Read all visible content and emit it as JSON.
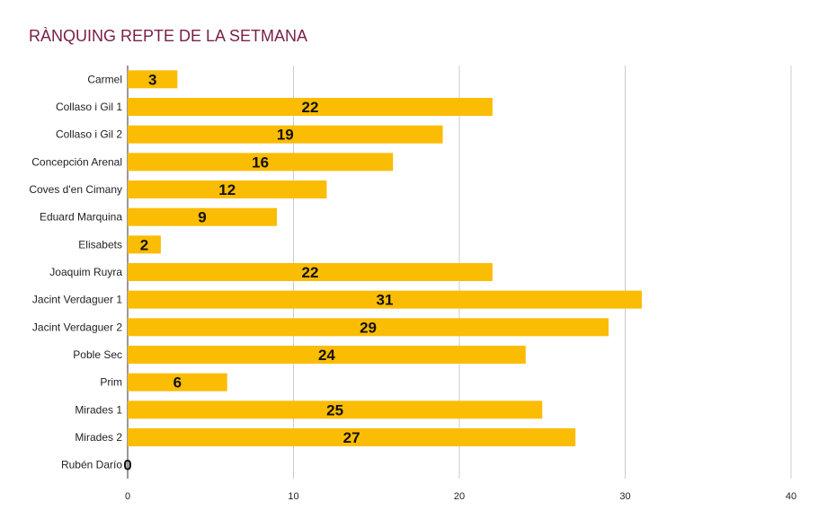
{
  "chart_data": {
    "type": "bar",
    "orientation": "horizontal",
    "title": "RÀNQUING REPTE DE LA SETMANA",
    "categories": [
      "Carmel",
      "Collaso i Gil 1",
      "Collaso i Gil 2",
      "Concepción Arenal",
      "Coves d'en Cimany",
      "Eduard Marquina",
      "Elisabets",
      "Joaquim Ruyra",
      "Jacint Verdaguer 1",
      "Jacint Verdaguer 2",
      "Poble Sec",
      "Prim",
      "Mirades 1",
      "Mirades 2",
      "Rubén Darío"
    ],
    "values": [
      3,
      22,
      19,
      16,
      12,
      9,
      2,
      22,
      31,
      29,
      24,
      6,
      25,
      27,
      0
    ],
    "xlim": [
      0,
      40
    ],
    "xticks": [
      0,
      10,
      20,
      30,
      40
    ],
    "grid": true,
    "bar_color": "#fbbc04",
    "title_color": "#7a2048"
  }
}
